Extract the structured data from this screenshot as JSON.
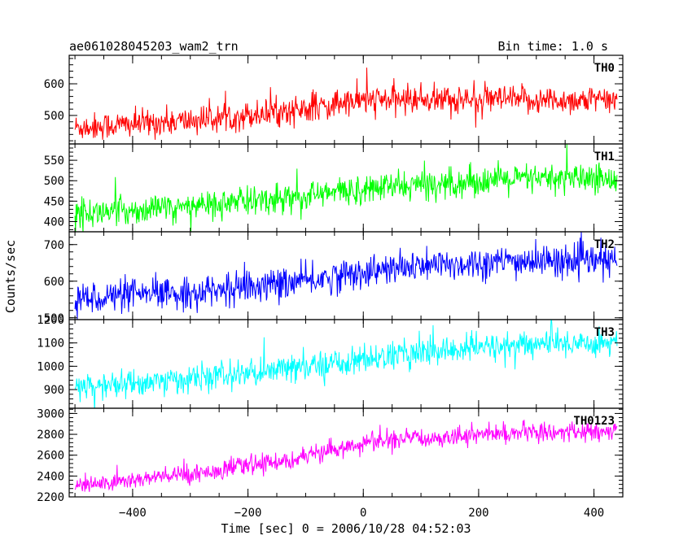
{
  "header": {
    "title": "ae061028045203_wam2_trn",
    "bin_time": "Bin time: 1.0 s"
  },
  "axes": {
    "ylabel": "Counts/sec",
    "xlabel": "Time [sec] 0 = 2006/10/28 04:52:03"
  },
  "chart_data": {
    "type": "line",
    "x_range": [
      -510,
      450
    ],
    "data_x_range": [
      -500,
      440
    ],
    "x_ticks": [
      -400,
      -200,
      0,
      200,
      400
    ],
    "x_ticklabels": [
      "−400",
      "−200",
      "0",
      "200",
      "400"
    ],
    "grid": false,
    "panels": [
      {
        "name": "TH0",
        "color": "#ff0000",
        "ylim": [
          410,
          690
        ],
        "y_ticks": [
          500,
          600
        ],
        "y_ticklabels": [
          "500",
          "600"
        ],
        "trend_x": [
          -500,
          -300,
          -100,
          0,
          100,
          200,
          300,
          440
        ],
        "trend_y": [
          462,
          483,
          520,
          548,
          552,
          550,
          548,
          548
        ],
        "noise_sd": 22
      },
      {
        "name": "TH1",
        "color": "#00ff00",
        "ylim": [
          375,
          590
        ],
        "y_ticks": [
          400,
          450,
          500,
          550
        ],
        "y_ticklabels": [
          "400",
          "450",
          "500",
          "550"
        ],
        "trend_x": [
          -500,
          -300,
          -100,
          0,
          100,
          200,
          300,
          440
        ],
        "trend_y": [
          418,
          437,
          462,
          480,
          490,
          500,
          504,
          505
        ],
        "noise_sd": 18
      },
      {
        "name": "TH2",
        "color": "#0000ff",
        "ylim": [
          495,
          735
        ],
        "y_ticks": [
          500,
          600,
          700
        ],
        "y_ticklabels": [
          "500",
          "600",
          "700"
        ],
        "trend_x": [
          -500,
          -300,
          -100,
          0,
          100,
          200,
          300,
          440
        ],
        "trend_y": [
          553,
          568,
          600,
          625,
          640,
          650,
          655,
          655
        ],
        "noise_sd": 22
      },
      {
        "name": "TH3",
        "color": "#00ffff",
        "ylim": [
          820,
          1200
        ],
        "y_ticks": [
          900,
          1000,
          1100,
          1200
        ],
        "y_ticklabels": [
          "900",
          "1000",
          "1100",
          "1200"
        ],
        "trend_x": [
          -500,
          -300,
          -100,
          0,
          100,
          200,
          300,
          440
        ],
        "trend_y": [
          908,
          945,
          995,
          1030,
          1058,
          1080,
          1095,
          1105
        ],
        "noise_sd": 30
      },
      {
        "name": "TH0123",
        "color": "#ff00ff",
        "ylim": [
          2200,
          3050
        ],
        "y_ticks": [
          2200,
          2400,
          2600,
          2800,
          3000
        ],
        "y_ticklabels": [
          "2200",
          "2400",
          "2600",
          "2800",
          "3000"
        ],
        "trend_x": [
          -500,
          -300,
          -100,
          0,
          100,
          200,
          300,
          440
        ],
        "trend_y": [
          2300,
          2420,
          2580,
          2720,
          2760,
          2800,
          2820,
          2820
        ],
        "noise_sd": 45
      }
    ]
  }
}
